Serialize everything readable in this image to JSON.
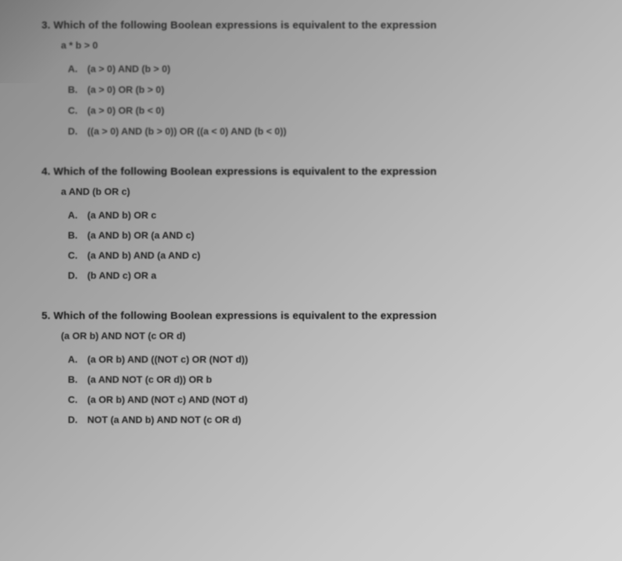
{
  "q3": {
    "number": "3.",
    "prompt": "Which of the following Boolean expressions is equivalent to the expression",
    "expr": "a * b > 0",
    "opts": [
      {
        "l": "A.",
        "t": "(a > 0) AND (b > 0)"
      },
      {
        "l": "B.",
        "t": "(a > 0) OR (b > 0)"
      },
      {
        "l": "C.",
        "t": "(a > 0) OR (b < 0)"
      },
      {
        "l": "D.",
        "t": "((a > 0) AND (b > 0)) OR ((a < 0) AND (b < 0))"
      }
    ]
  },
  "q4": {
    "number": "4.",
    "prompt": "Which of the following Boolean expressions is equivalent to the expression",
    "expr": "a AND (b OR c)",
    "opts": [
      {
        "l": "A.",
        "t": "(a AND b) OR c"
      },
      {
        "l": "B.",
        "t": "(a AND b) OR (a AND c)"
      },
      {
        "l": "C.",
        "t": "(a AND b) AND (a AND c)"
      },
      {
        "l": "D.",
        "t": "(b AND c) OR a"
      }
    ]
  },
  "q5": {
    "number": "5.",
    "prompt": "Which of the following Boolean expressions is equivalent to the expression",
    "expr": "(a OR b) AND NOT (c OR d)",
    "opts": [
      {
        "l": "A.",
        "t": "(a OR b) AND ((NOT c) OR (NOT d))"
      },
      {
        "l": "B.",
        "t": "(a AND NOT (c OR d)) OR b"
      },
      {
        "l": "C.",
        "t": "(a OR b) AND (NOT c) AND (NOT d)"
      },
      {
        "l": "D.",
        "t": "NOT (a AND b) AND NOT (c OR d)"
      }
    ]
  }
}
